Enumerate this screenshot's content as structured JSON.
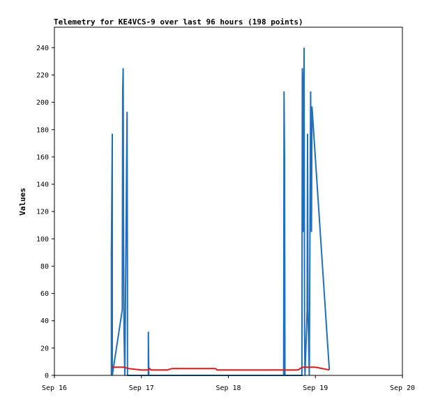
{
  "chart_data": {
    "type": "line",
    "title": "Telemetry for KE4VCS-9 over last 96 hours (198 points)",
    "xlabel": "",
    "ylabel": "Values",
    "x_ticks": [
      "Sep 16",
      "Sep 17",
      "Sep 18",
      "Sep 19",
      "Sep 20"
    ],
    "y_ticks": [
      0,
      20,
      40,
      60,
      80,
      100,
      120,
      140,
      160,
      180,
      200,
      220,
      240
    ],
    "xlim": [
      0,
      4
    ],
    "ylim": [
      0,
      255
    ],
    "grid": false,
    "series": [
      {
        "color": "#1f6fbf",
        "points": [
          [
            0.655,
            0
          ],
          [
            0.655,
            88
          ],
          [
            0.665,
            177
          ],
          [
            0.665,
            0
          ],
          [
            0.78,
            48
          ],
          [
            0.785,
            208
          ],
          [
            0.79,
            225
          ],
          [
            0.795,
            97
          ],
          [
            0.8,
            32
          ],
          [
            0.81,
            0
          ],
          [
            0.835,
            193
          ],
          [
            0.84,
            64
          ],
          [
            0.84,
            0
          ],
          [
            1.08,
            0
          ],
          [
            1.08,
            32
          ],
          [
            1.085,
            0
          ],
          [
            2.635,
            0
          ],
          [
            2.64,
            208
          ],
          [
            2.645,
            160
          ],
          [
            2.65,
            0
          ],
          [
            2.845,
            0
          ],
          [
            2.85,
            225
          ],
          [
            2.855,
            208
          ],
          [
            2.86,
            105
          ],
          [
            2.87,
            240
          ],
          [
            2.875,
            32
          ],
          [
            2.88,
            0
          ],
          [
            2.905,
            48
          ],
          [
            2.91,
            177
          ],
          [
            2.915,
            48
          ],
          [
            2.93,
            0
          ],
          [
            2.945,
            208
          ],
          [
            2.955,
            105
          ],
          [
            2.96,
            197
          ],
          [
            3.16,
            4
          ]
        ]
      },
      {
        "color": "#e01818",
        "points": [
          [
            0.655,
            6
          ],
          [
            0.8,
            6
          ],
          [
            0.85,
            5
          ],
          [
            1.0,
            4
          ],
          [
            1.08,
            4
          ],
          [
            1.095,
            5
          ],
          [
            1.11,
            4
          ],
          [
            1.3,
            4
          ],
          [
            1.35,
            5
          ],
          [
            1.7,
            5
          ],
          [
            1.85,
            5
          ],
          [
            1.87,
            4
          ],
          [
            2.1,
            4
          ],
          [
            2.6,
            4
          ],
          [
            2.8,
            4
          ],
          [
            2.85,
            6
          ],
          [
            3.0,
            6
          ],
          [
            3.16,
            4
          ]
        ]
      }
    ]
  }
}
